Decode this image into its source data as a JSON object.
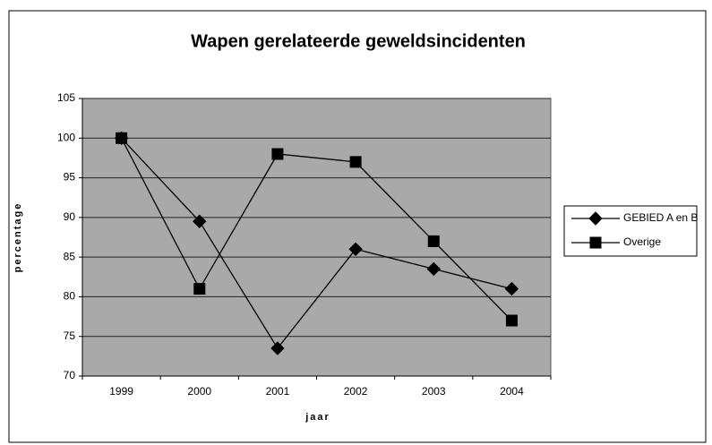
{
  "chart_data": {
    "type": "line",
    "title": "Wapen gerelateerde geweldsincidenten",
    "x_label": "jaar",
    "y_label": "percentage",
    "categories": [
      "1999",
      "2000",
      "2001",
      "2002",
      "2003",
      "2004"
    ],
    "series": [
      {
        "name": "GEBIED A en B",
        "color": "#000000",
        "marker": "diamond",
        "values": [
          100,
          89.5,
          73.5,
          86,
          83.5,
          81
        ]
      },
      {
        "name": "Overige",
        "color": "#000000",
        "marker": "square",
        "values": [
          100,
          81,
          98,
          97,
          87,
          77
        ]
      }
    ],
    "ylim": [
      70,
      105
    ],
    "yticks": [
      70,
      75,
      80,
      85,
      90,
      95,
      100,
      105
    ],
    "grid": true,
    "legend": "right"
  }
}
